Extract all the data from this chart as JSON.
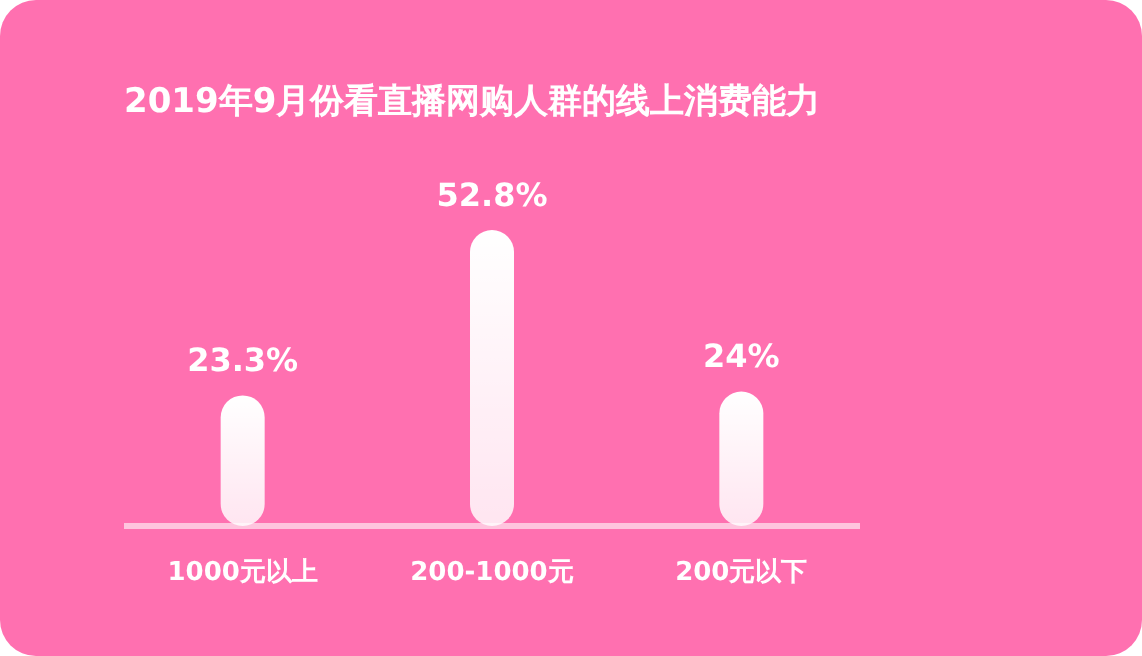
{
  "chart_data": {
    "type": "bar",
    "title": "2019年9月份看直播网购人群的线上消费能力",
    "categories": [
      "1000元以上",
      "200-1000元",
      "200元以下"
    ],
    "values": [
      23.3,
      52.8,
      24
    ],
    "color": "#ffffff",
    "value_labels": [
      "23.3%",
      "52.8%",
      "24%"
    ]
  }
}
